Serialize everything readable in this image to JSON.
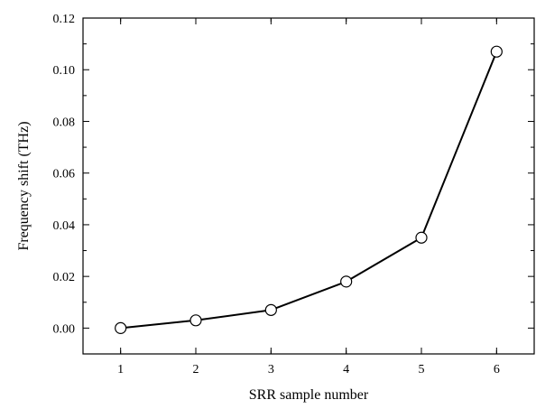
{
  "chart_data": {
    "type": "line",
    "title": "",
    "xlabel": "SRR sample number",
    "ylabel": "Frequency shift (THz)",
    "xlim": [
      0.5,
      6.5
    ],
    "ylim": [
      -0.01,
      0.12
    ],
    "xticks": [
      1,
      2,
      3,
      4,
      5,
      6
    ],
    "xtick_labels": [
      "1",
      "2",
      "3",
      "4",
      "5",
      "6"
    ],
    "yticks": [
      0.0,
      0.02,
      0.04,
      0.06,
      0.08,
      0.1,
      0.12
    ],
    "ytick_labels": [
      "0.00",
      "0.02",
      "0.04",
      "0.06",
      "0.08",
      "0.10",
      "0.12"
    ],
    "grid": false,
    "legend": "none",
    "colors": {
      "line": "#000000",
      "marker_fill": "#ffffff",
      "axes": "#000000"
    },
    "series": [
      {
        "x": [
          1,
          2,
          3,
          4,
          5,
          6
        ],
        "y": [
          0.0,
          0.003,
          0.007,
          0.018,
          0.035,
          0.107
        ],
        "marker": "open-circle"
      }
    ]
  }
}
